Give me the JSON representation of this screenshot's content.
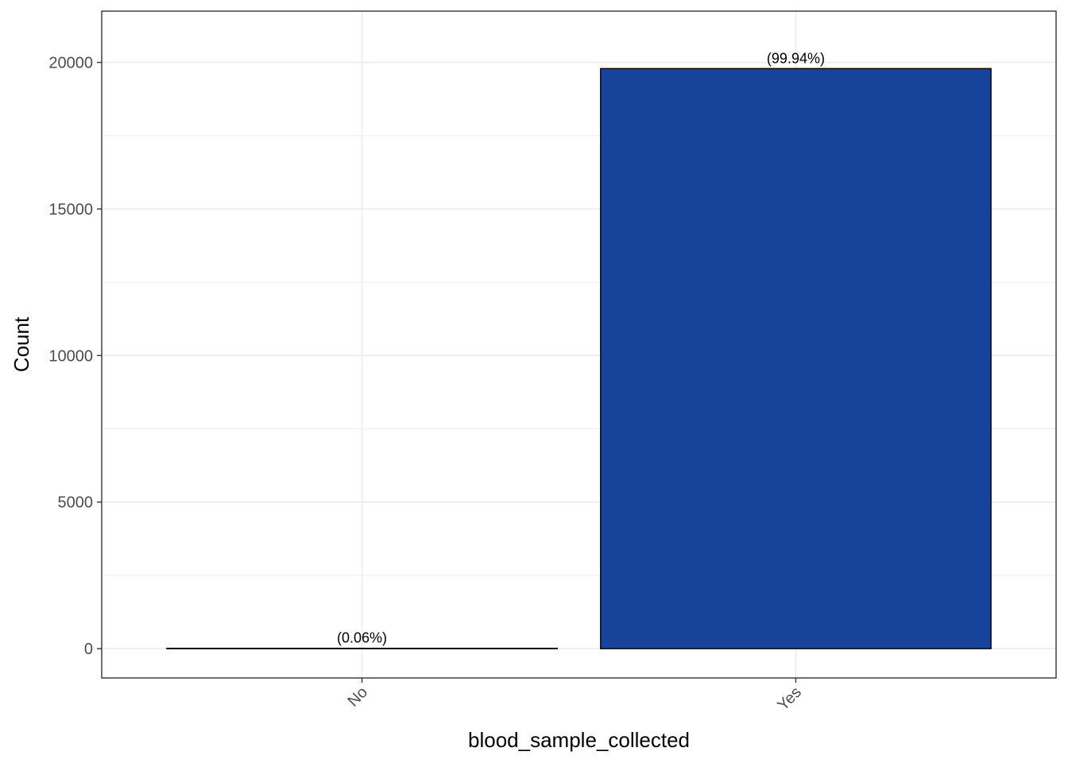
{
  "chart_data": {
    "type": "bar",
    "categories": [
      "No",
      "Yes"
    ],
    "values": [
      12,
      19790
    ],
    "data_labels": [
      "(0.06%)",
      "(99.94%)"
    ],
    "xlabel": "blood_sample_collected",
    "ylabel": "Count",
    "ylim": [
      -1000,
      21750
    ],
    "yticks": [
      0,
      5000,
      10000,
      15000,
      20000
    ],
    "ytick_labels": [
      "0",
      "5000",
      "10000",
      "15000",
      "20000"
    ],
    "grid": true,
    "legend": "none",
    "colors": {
      "bar_fill": "#17439A",
      "bar_stroke": "#000000",
      "grid": "#EBEBEB",
      "panel_border": "#333333"
    }
  }
}
